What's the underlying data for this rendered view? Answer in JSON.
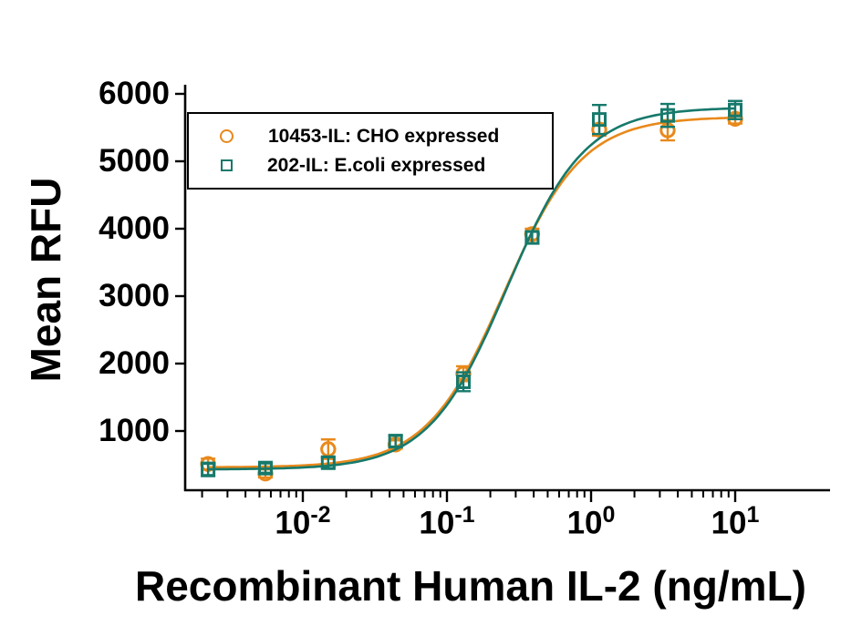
{
  "figure": {
    "background": "#ffffff",
    "text_color": "#000000"
  },
  "chart_data": {
    "type": "scatter",
    "title": "",
    "xlabel": "Recombinant Human IL-2 (ng/mL)",
    "ylabel": "Mean RFU",
    "x_scale": "log",
    "y_scale": "linear",
    "xlim": [
      0.0015,
      45
    ],
    "ylim": [
      120,
      6110
    ],
    "grid": false,
    "legend_position": "top-left-inside",
    "y_ticks": [
      1000,
      2000,
      3000,
      4000,
      5000,
      6000
    ],
    "x_ticks": [
      {
        "base": "10",
        "exp": "-2"
      },
      {
        "base": "10",
        "exp": "-1"
      },
      {
        "base": "10",
        "exp": "0"
      },
      {
        "base": "10",
        "exp": "1"
      }
    ],
    "x": [
      0.0022,
      0.0055,
      0.015,
      0.044,
      0.13,
      0.39,
      1.14,
      3.4,
      10
    ],
    "series": [
      {
        "name": "10453-IL: CHO expressed",
        "marker": "circle",
        "color": "#E8891B",
        "values": [
          510,
          370,
          730,
          800,
          1850,
          3920,
          5470,
          5460,
          5630
        ],
        "errors": [
          80,
          60,
          145,
          60,
          110,
          80,
          90,
          150,
          70
        ],
        "fit": {
          "model": "4PL",
          "bottom": 460,
          "top": 5660,
          "ec50": 0.25,
          "hill": 1.6
        }
      },
      {
        "name": "202-IL: E.coli expressed",
        "marker": "square",
        "color": "#16796B",
        "values": [
          430,
          450,
          530,
          850,
          1730,
          3870,
          5620,
          5680,
          5760
        ],
        "errors": [
          100,
          70,
          80,
          80,
          140,
          90,
          215,
          170,
          135
        ],
        "fit": {
          "model": "4PL",
          "bottom": 430,
          "top": 5800,
          "ec50": 0.26,
          "hill": 1.6
        }
      }
    ]
  }
}
